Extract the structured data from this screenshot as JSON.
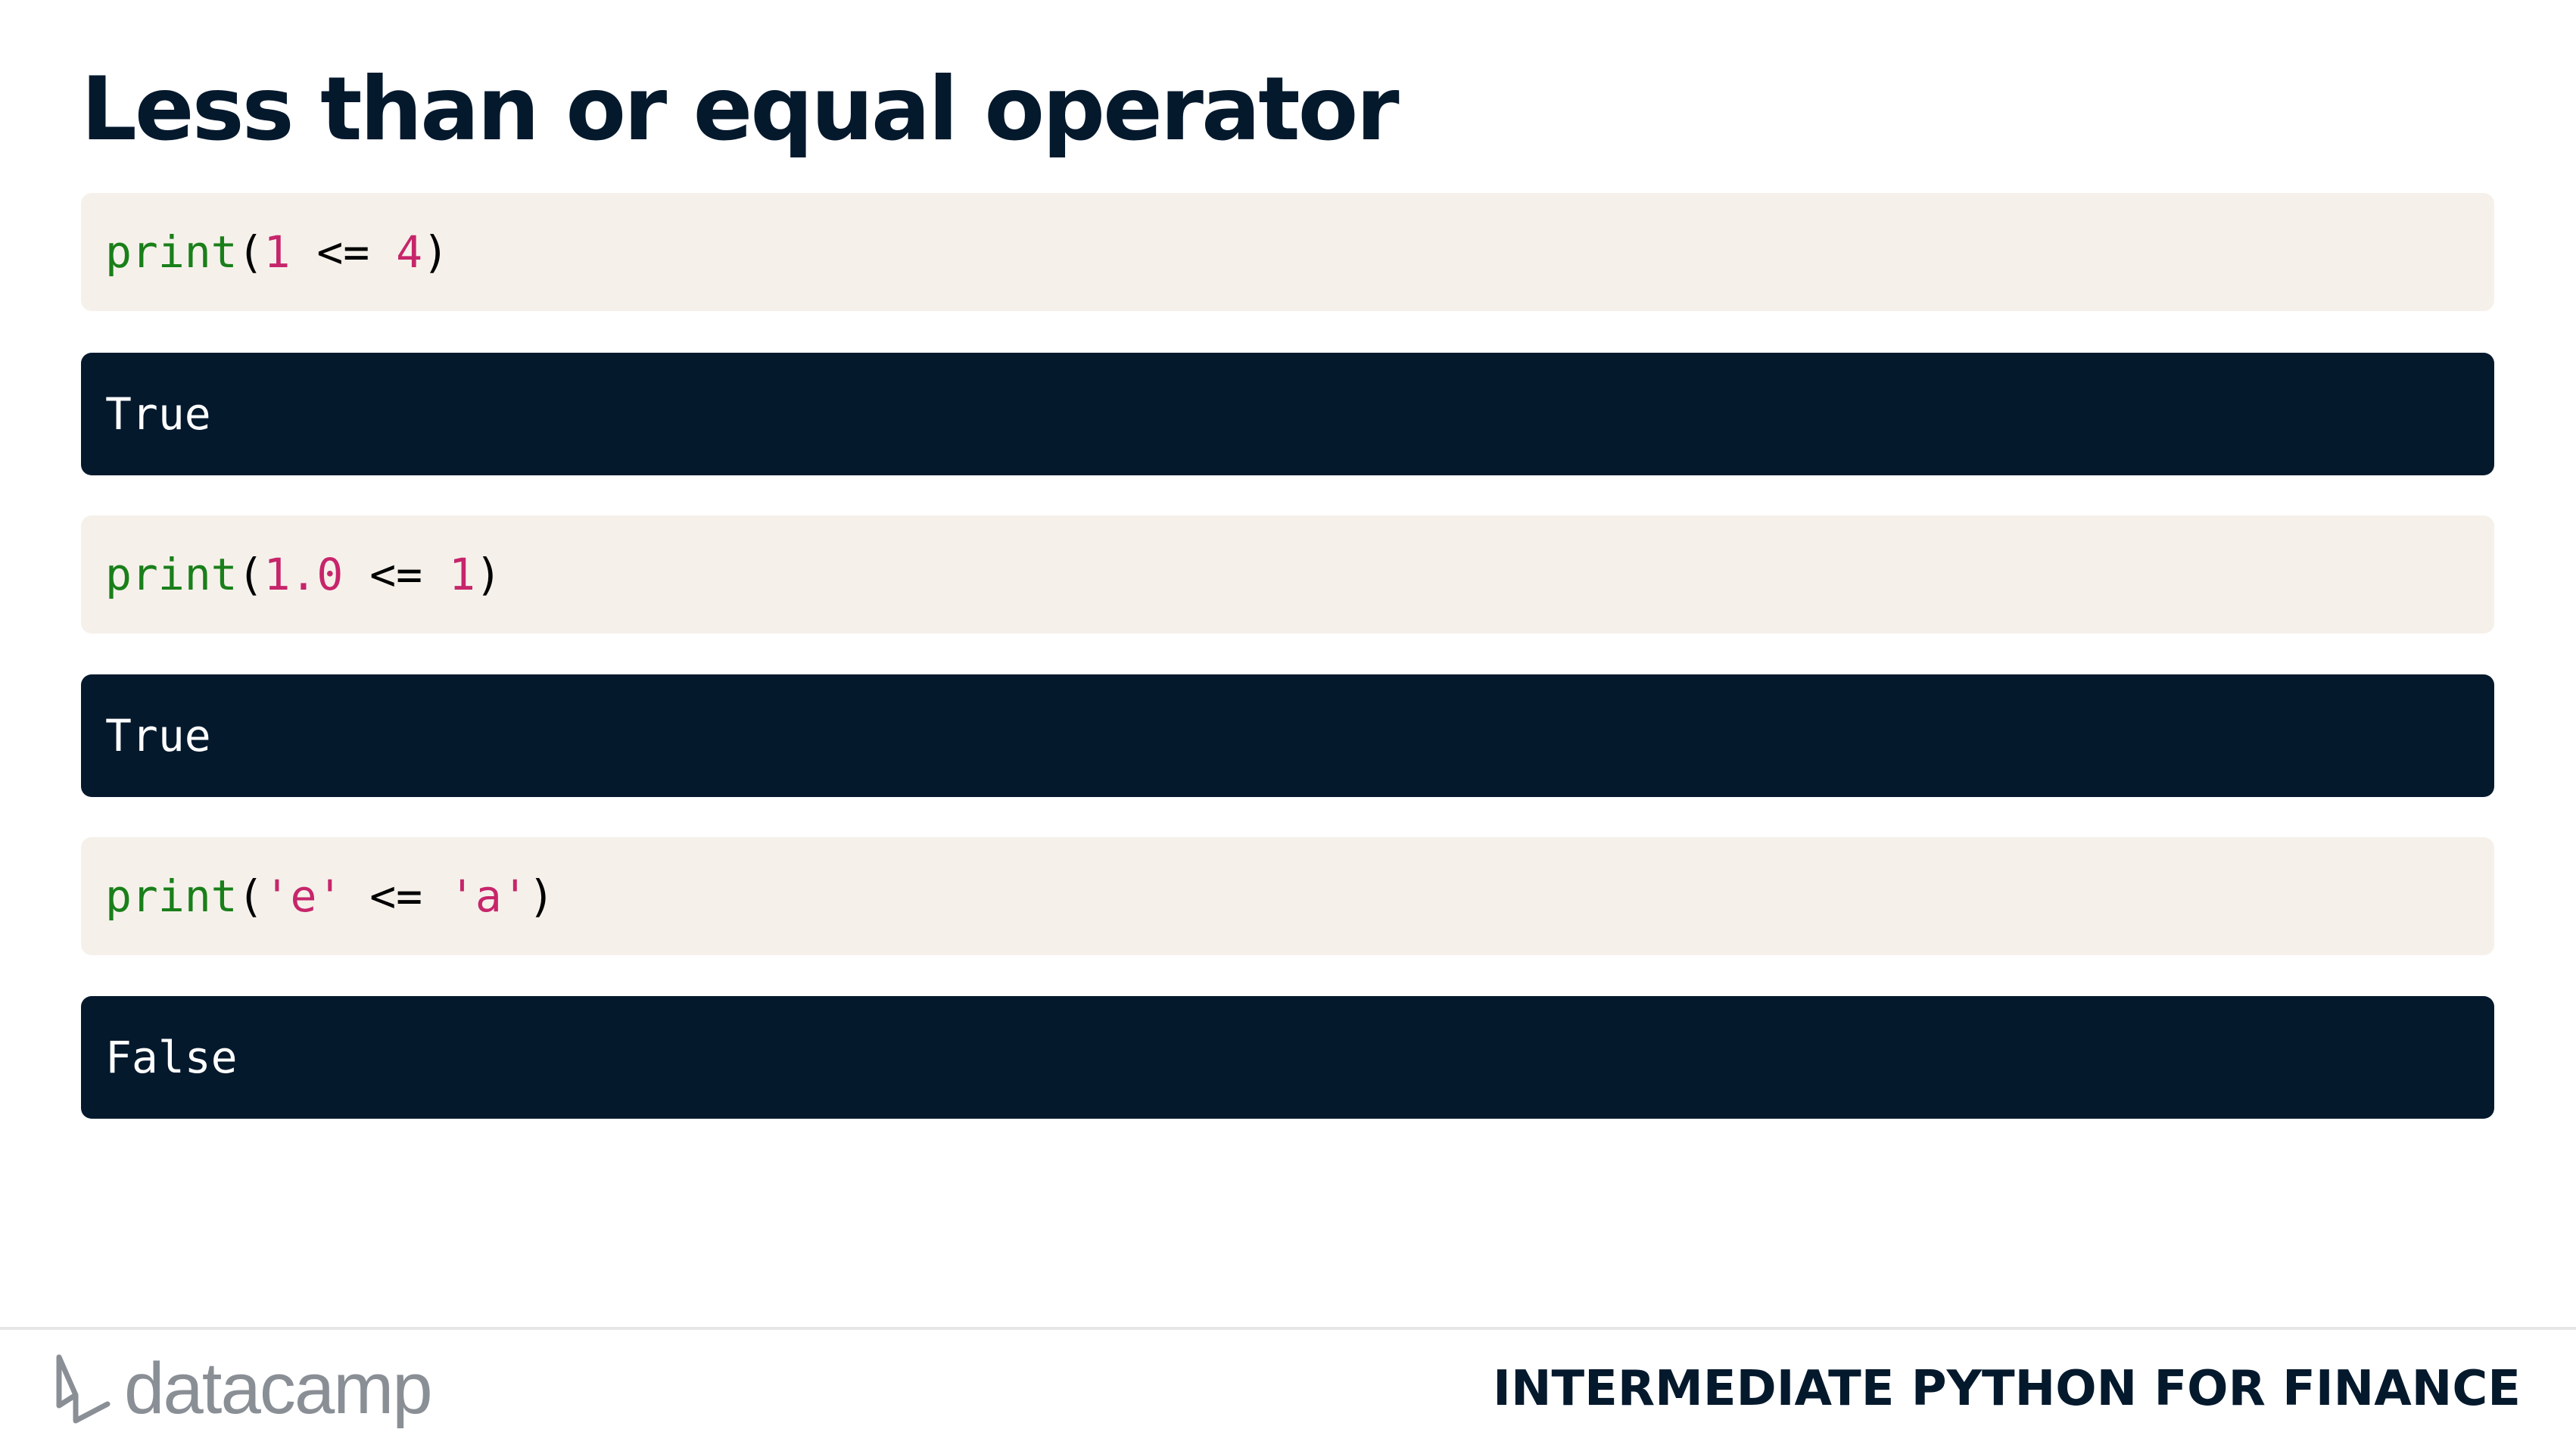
{
  "slide": {
    "title": "Less than or equal operator"
  },
  "cells": [
    {
      "code": {
        "fn": "print",
        "open": "(",
        "left": "1",
        "op": " <= ",
        "right": "4",
        "close": ")"
      },
      "output": "True"
    },
    {
      "code": {
        "fn": "print",
        "open": "(",
        "left": "1.0",
        "op": " <= ",
        "right": "1",
        "close": ")"
      },
      "output": "True"
    },
    {
      "code": {
        "fn": "print",
        "open": "(",
        "left": "'e'",
        "op": " <= ",
        "right": "'a'",
        "close": ")"
      },
      "output": "False"
    }
  ],
  "footer": {
    "brand": "datacamp",
    "logo_icon": "datacamp-logo-icon",
    "course_title": "INTERMEDIATE PYTHON FOR FINANCE"
  },
  "colors": {
    "title": "#05192d",
    "code_bg": "#f5f1ea",
    "output_bg": "#05192d",
    "function": "#1a7f1a",
    "literal": "#c7256b"
  }
}
